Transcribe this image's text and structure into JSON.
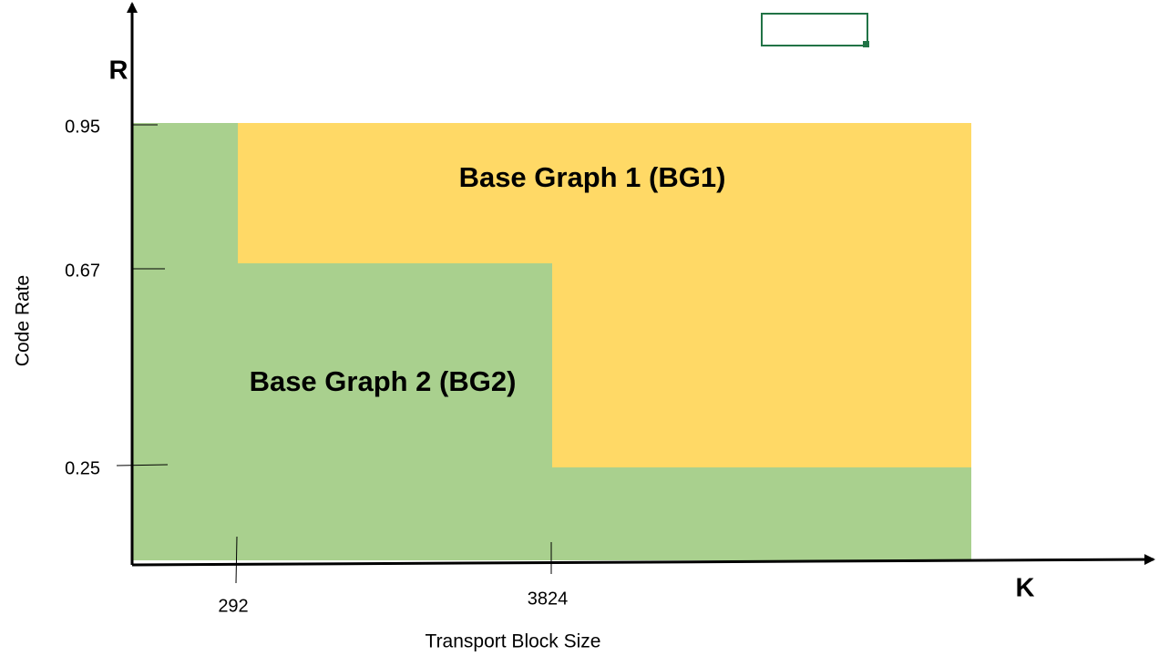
{
  "axes": {
    "y_symbol": "R",
    "x_symbol": "K",
    "y_title": "Code Rate",
    "x_title": "Transport Block Size"
  },
  "y_ticks": [
    "0.95",
    "0.67",
    "0.25"
  ],
  "x_ticks": [
    "292",
    "3824"
  ],
  "regions": [
    {
      "label": "Base Graph 1 (BG1)"
    },
    {
      "label": "Base Graph 2 (BG2)"
    }
  ]
}
